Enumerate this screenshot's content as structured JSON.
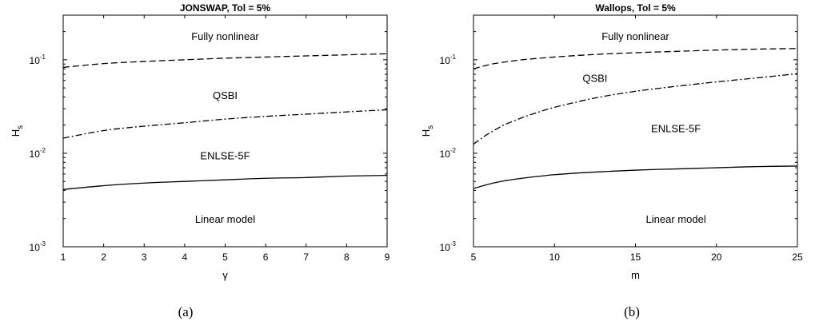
{
  "chart_data": [
    {
      "type": "line",
      "title": "JONSWAP, Tol = 5%",
      "xlabel": "γ",
      "ylabel_main": "H",
      "ylabel_sub": "s",
      "caption": "(a)",
      "xlim": [
        1,
        9
      ],
      "ylim": [
        0.001,
        0.3
      ],
      "yscale": "log",
      "xticks": [
        "1",
        "2",
        "3",
        "4",
        "5",
        "6",
        "7",
        "8",
        "9"
      ],
      "yticks": [
        {
          "base": "10",
          "exp": "-3"
        },
        {
          "base": "10",
          "exp": "-2"
        },
        {
          "base": "10",
          "exp": "-1"
        }
      ],
      "grid": false,
      "legend": "none",
      "series": [
        {
          "style": "dashed",
          "x": [
            1,
            2,
            3,
            4,
            5,
            6,
            7,
            8,
            9
          ],
          "y": [
            0.083,
            0.091,
            0.096,
            0.1,
            0.104,
            0.107,
            0.11,
            0.113,
            0.116
          ]
        },
        {
          "style": "dashdot",
          "x": [
            1,
            2,
            3,
            4,
            5,
            6,
            7,
            8,
            9
          ],
          "y": [
            0.0145,
            0.0175,
            0.0195,
            0.0212,
            0.0232,
            0.0248,
            0.0262,
            0.0277,
            0.0292
          ]
        },
        {
          "style": "solid",
          "x": [
            1,
            2,
            3,
            4,
            5,
            6,
            7,
            8,
            9
          ],
          "y": [
            0.0041,
            0.0045,
            0.0048,
            0.005,
            0.0052,
            0.0054,
            0.0055,
            0.0057,
            0.0058
          ]
        }
      ],
      "annotations": [
        {
          "text": "Fully nonlinear",
          "x": 5,
          "y": 0.18
        },
        {
          "text": "QSBI",
          "x": 5,
          "y": 0.042
        },
        {
          "text": "ENLSE-5F",
          "x": 5,
          "y": 0.0095
        },
        {
          "text": "Linear model",
          "x": 5,
          "y": 0.002
        }
      ]
    },
    {
      "type": "line",
      "title": "Wallops, Tol = 5%",
      "xlabel": "m",
      "ylabel_main": "H",
      "ylabel_sub": "s",
      "caption": "(b)",
      "xlim": [
        5,
        25
      ],
      "ylim": [
        0.001,
        0.3
      ],
      "yscale": "log",
      "xticks": [
        "5",
        "10",
        "15",
        "20",
        "25"
      ],
      "yticks": [
        {
          "base": "10",
          "exp": "-3"
        },
        {
          "base": "10",
          "exp": "-2"
        },
        {
          "base": "10",
          "exp": "-1"
        }
      ],
      "grid": false,
      "legend": "none",
      "series": [
        {
          "style": "dashed",
          "x": [
            5,
            6,
            7,
            8,
            10,
            12.5,
            15,
            17.5,
            20,
            22.5,
            25
          ],
          "y": [
            0.08,
            0.089,
            0.095,
            0.1,
            0.107,
            0.114,
            0.119,
            0.123,
            0.127,
            0.13,
            0.132
          ]
        },
        {
          "style": "dashdot",
          "x": [
            5,
            5.5,
            6,
            6.5,
            7,
            8,
            9,
            10,
            12.5,
            15,
            17.5,
            20,
            22.5,
            25
          ],
          "y": [
            0.0125,
            0.0145,
            0.0165,
            0.0185,
            0.0205,
            0.024,
            0.0275,
            0.031,
            0.039,
            0.046,
            0.052,
            0.058,
            0.064,
            0.071
          ]
        },
        {
          "style": "solid",
          "x": [
            5,
            6,
            7,
            8,
            10,
            12.5,
            15,
            17.5,
            20,
            22.5,
            25
          ],
          "y": [
            0.0042,
            0.0047,
            0.0051,
            0.0054,
            0.0059,
            0.0063,
            0.0066,
            0.0068,
            0.007,
            0.0072,
            0.0073
          ]
        }
      ],
      "annotations": [
        {
          "text": "Fully nonlinear",
          "x": 15,
          "y": 0.18
        },
        {
          "text": "QSBI",
          "x": 12.5,
          "y": 0.064
        },
        {
          "text": "ENLSE-5F",
          "x": 17.5,
          "y": 0.0185
        },
        {
          "text": "Linear model",
          "x": 17.5,
          "y": 0.002
        }
      ]
    }
  ]
}
